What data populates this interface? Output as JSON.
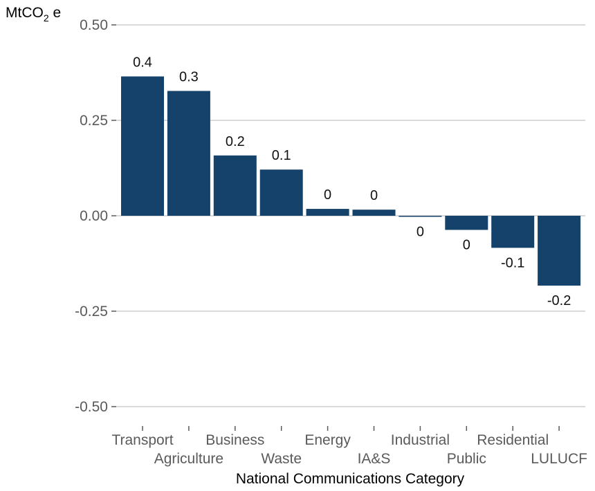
{
  "chart_data": {
    "type": "bar",
    "title": "",
    "ylabel_prefix": "MtCO",
    "ylabel_subscript": "2",
    "ylabel_suffix": " e",
    "xlabel": "National Communications Category",
    "ylim": [
      -0.5,
      0.5
    ],
    "yticks": [
      0.5,
      0.25,
      0,
      -0.25,
      -0.5
    ],
    "ytick_labels": [
      "0.50",
      "0.25",
      "0.00",
      "-0.25",
      "-0.50"
    ],
    "categories": [
      "Transport",
      "Agriculture",
      "Business",
      "Waste",
      "Energy",
      "IA&S",
      "Industrial",
      "Public",
      "Residential",
      "LULUCF"
    ],
    "values": [
      0.365,
      0.327,
      0.158,
      0.121,
      0.018,
      0.016,
      -0.002,
      -0.037,
      -0.084,
      -0.183
    ],
    "data_labels": [
      "0.4",
      "0.3",
      "0.2",
      "0.1",
      "0",
      "0",
      "0",
      "0",
      "-0.1",
      "-0.2"
    ],
    "grid": true,
    "legend": "none",
    "bar_color": "#14426b"
  }
}
